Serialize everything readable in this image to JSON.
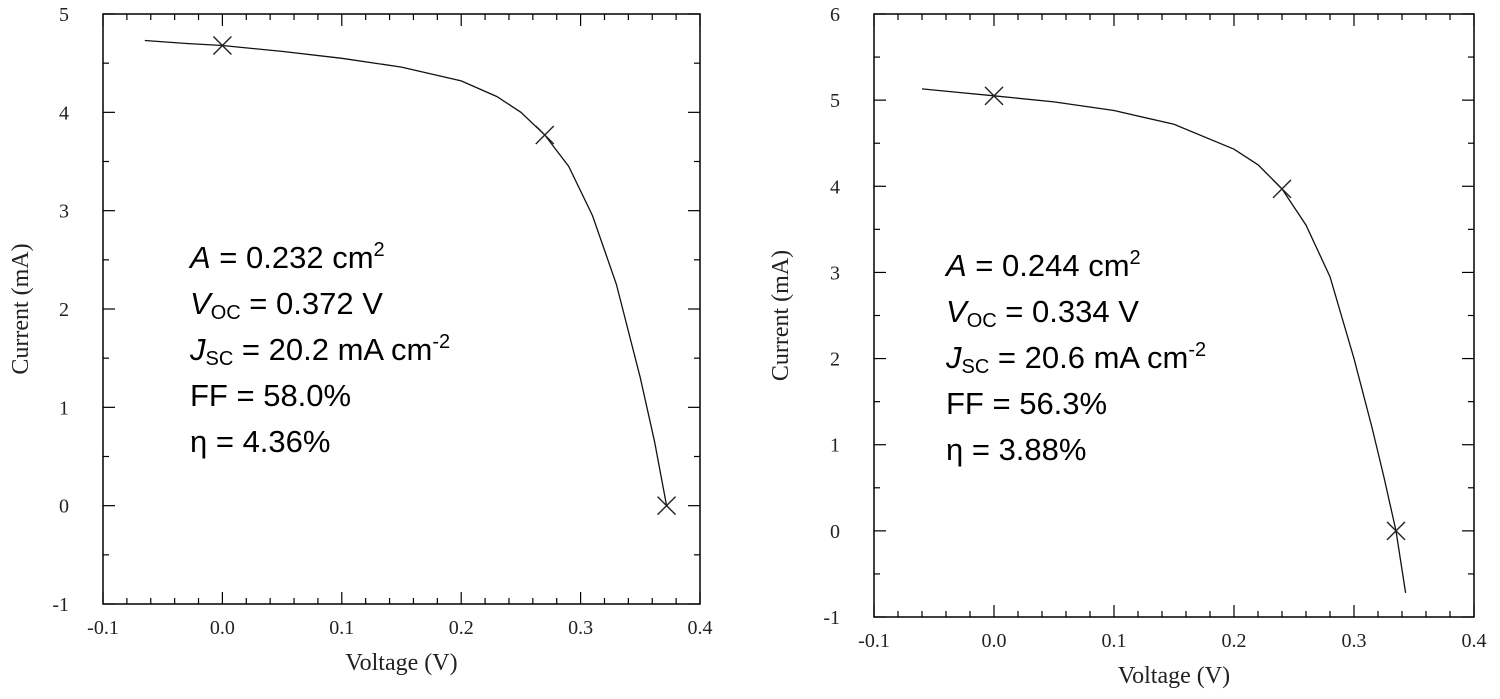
{
  "chart_data": [
    {
      "type": "line",
      "xlabel": "Voltage (V)",
      "ylabel": "Current (mA)",
      "xlim": [
        -0.1,
        0.4
      ],
      "ylim": [
        -1,
        5
      ],
      "x_ticks": [
        "-0.1",
        "0.0",
        "0.1",
        "0.2",
        "0.3",
        "0.4"
      ],
      "y_ticks": [
        "-1",
        "0",
        "1",
        "2",
        "3",
        "4",
        "5"
      ],
      "grid": false,
      "series": [
        {
          "x": [
            -0.065,
            -0.03,
            0.0,
            0.05,
            0.1,
            0.15,
            0.2,
            0.23,
            0.25,
            0.27,
            0.29,
            0.31,
            0.33,
            0.35,
            0.362,
            0.372
          ],
          "y": [
            4.73,
            4.7,
            4.68,
            4.62,
            4.55,
            4.46,
            4.32,
            4.16,
            4.0,
            3.77,
            3.45,
            2.95,
            2.25,
            1.3,
            0.65,
            0.0
          ]
        }
      ],
      "markers": {
        "x": [
          0.0,
          0.27,
          0.372
        ],
        "y": [
          4.68,
          3.77,
          0.0
        ]
      },
      "annotation": {
        "area": {
          "sym": "A",
          "text": " = 0.232 cm",
          "sup": "2"
        },
        "voc": {
          "sym": "V",
          "sub": "OC",
          "text": " = 0.372 V"
        },
        "jsc": {
          "sym": "J",
          "sub": "SC",
          "text": " = 20.2 mA cm",
          "sup": "-2"
        },
        "ff": "FF = 58.0%",
        "eta": "η = 4.36%"
      }
    },
    {
      "type": "line",
      "xlabel": "Voltage (V)",
      "ylabel": "Current (mA)",
      "xlim": [
        -0.1,
        0.4
      ],
      "ylim": [
        -1,
        6
      ],
      "x_ticks": [
        "-0.1",
        "0.0",
        "0.1",
        "0.2",
        "0.3",
        "0.4"
      ],
      "y_ticks": [
        "-1",
        "0",
        "1",
        "2",
        "3",
        "4",
        "5",
        "6"
      ],
      "grid": false,
      "series": [
        {
          "x": [
            -0.06,
            -0.03,
            0.0,
            0.05,
            0.1,
            0.15,
            0.2,
            0.22,
            0.24,
            0.26,
            0.28,
            0.3,
            0.315,
            0.325,
            0.335,
            0.343
          ],
          "y": [
            5.13,
            5.09,
            5.05,
            4.98,
            4.88,
            4.72,
            4.43,
            4.25,
            3.97,
            3.55,
            2.95,
            2.0,
            1.2,
            0.62,
            0.0,
            -0.72
          ]
        }
      ],
      "markers": {
        "x": [
          0.0,
          0.24,
          0.335
        ],
        "y": [
          5.05,
          3.97,
          0.0
        ]
      },
      "annotation": {
        "area": {
          "sym": "A",
          "text": " = 0.244 cm",
          "sup": "2"
        },
        "voc": {
          "sym": "V",
          "sub": "OC",
          "text": " = 0.334 V"
        },
        "jsc": {
          "sym": "J",
          "sub": "SC",
          "text": " = 20.6 mA cm",
          "sup": "-2"
        },
        "ff": "FF = 56.3%",
        "eta": "η = 3.88%"
      }
    }
  ]
}
